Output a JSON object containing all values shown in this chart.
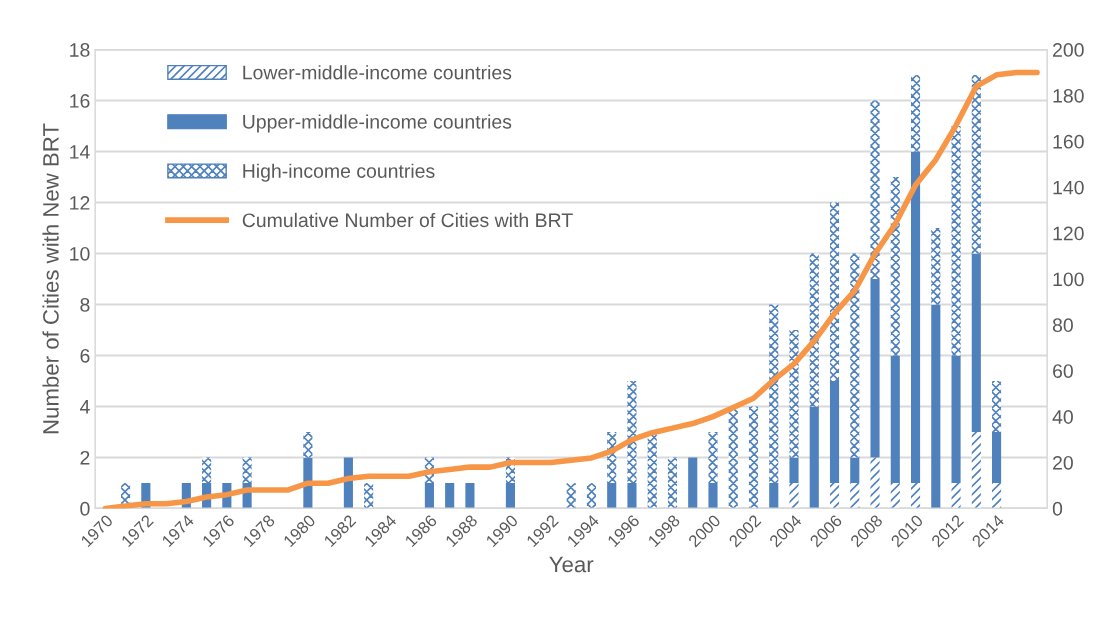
{
  "chart_data": {
    "type": "bar",
    "stacked": true,
    "xlabel": "Year",
    "ylabel": "Number of Cities with New BRT",
    "categories": [
      "1970",
      null,
      "1972",
      null,
      "1974",
      null,
      "1976",
      null,
      "1978",
      null,
      "1980",
      null,
      "1982",
      null,
      "1984",
      null,
      "1986",
      null,
      "1988",
      null,
      "1990",
      null,
      "1992",
      null,
      "1994",
      null,
      "1996",
      null,
      "1998",
      null,
      "2000",
      null,
      "2002",
      null,
      "2004",
      null,
      "2006",
      null,
      "2008",
      null,
      "2010",
      null,
      "2012",
      null,
      "2014",
      null,
      null
    ],
    "series": [
      {
        "name": "Lower-middle-income countries",
        "color": "#4f81bd",
        "values": [
          0,
          0,
          0,
          0,
          0,
          0,
          0,
          0,
          0,
          0,
          0,
          0,
          0,
          0,
          0,
          0,
          0,
          0,
          0,
          0,
          0,
          0,
          0,
          0,
          0,
          0,
          0,
          0,
          0,
          0,
          0,
          0,
          0,
          0,
          1,
          0,
          1,
          1,
          2,
          1,
          1,
          0,
          1,
          3,
          1,
          null,
          null
        ]
      },
      {
        "name": "Upper-middle-income countries",
        "color": "#4f81bd",
        "values": [
          0,
          0,
          1,
          0,
          1,
          1,
          1,
          1,
          0,
          0,
          2,
          0,
          2,
          0,
          0,
          0,
          1,
          1,
          1,
          0,
          1,
          0,
          0,
          0,
          0,
          1,
          1,
          0,
          0,
          2,
          1,
          0,
          0,
          1,
          1,
          4,
          4,
          1,
          7,
          5,
          13,
          8,
          5,
          7,
          2,
          null,
          null
        ]
      },
      {
        "name": "High-income countries",
        "color": "#4f81bd",
        "values": [
          0,
          1,
          0,
          0,
          0,
          1,
          0,
          1,
          0,
          0,
          1,
          0,
          0,
          1,
          0,
          0,
          1,
          0,
          0,
          0,
          1,
          0,
          0,
          1,
          1,
          2,
          4,
          3,
          2,
          0,
          2,
          4,
          4,
          7,
          5,
          6,
          7,
          8,
          7,
          7,
          3,
          3,
          9,
          7,
          2,
          null,
          null
        ]
      },
      {
        "name": "Cumulative Number of Cities with BRT",
        "type": "line",
        "axis": "y2",
        "color": "#f79646",
        "values": [
          0,
          1,
          2,
          2,
          3,
          5,
          6,
          8,
          8,
          8,
          11,
          11,
          13,
          14,
          14,
          14,
          16,
          17,
          18,
          18,
          20,
          20,
          20,
          21,
          22,
          25,
          30,
          33,
          35,
          37,
          40,
          44,
          48,
          56,
          63,
          73,
          85,
          95,
          111,
          124,
          141,
          152,
          167,
          184,
          189,
          190,
          190
        ]
      }
    ],
    "ylim": [
      0,
      18
    ],
    "yticks": [
      0,
      2,
      4,
      6,
      8,
      10,
      12,
      14,
      16,
      18
    ],
    "y2lim": [
      0,
      200
    ],
    "y2ticks": [
      0,
      20,
      40,
      60,
      80,
      100,
      120,
      140,
      160,
      180,
      200
    ],
    "grid": "y",
    "legend": "top left"
  }
}
